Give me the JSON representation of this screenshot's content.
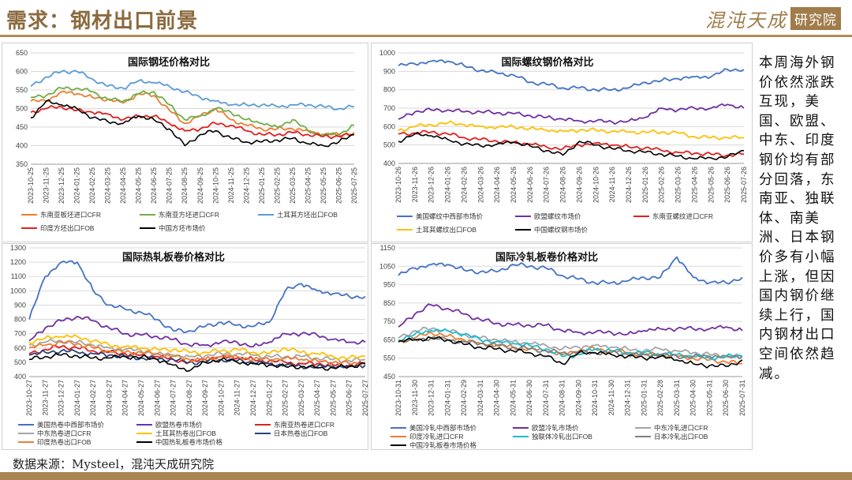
{
  "header": {
    "title": "需求：钢材出口前景",
    "logo_text": "混沌天成",
    "logo_box": "研究院"
  },
  "side_text": "本周海外钢价依然涨跌互现，美国、欧盟、中东、印度钢价均有部分回落，东南亚、独联体、南美洲、日本钢价多有小幅上涨，但因国内钢价继续上行，国内钢材出口空间依然趋减。",
  "source_text": "数据来源：Mysteel，混沌天成研究院",
  "colors": {
    "brand": "#a07c4a",
    "rule": "#b08d57"
  },
  "chart_data": [
    {
      "type": "line",
      "title": "国际钢坯价格对比",
      "ylim": [
        350,
        650
      ],
      "yticks": [
        350,
        400,
        450,
        500,
        550,
        600,
        650
      ],
      "x": [
        "2023-10-25",
        "2023-11-25",
        "2023-12-25",
        "2024-01-25",
        "2024-02-25",
        "2024-03-25",
        "2024-04-25",
        "2024-05-25",
        "2024-06-25",
        "2024-07-25",
        "2024-08-25",
        "2024-09-25",
        "2024-10-25",
        "2024-11-25",
        "2024-12-25",
        "2025-01-25",
        "2025-02-25",
        "2025-03-25",
        "2025-04-25",
        "2025-05-25",
        "2025-06-25",
        "2025-07-25"
      ],
      "legend_cols": 3,
      "series": [
        {
          "name": "东南亚板坯进口CFR",
          "color": "#ed7d31",
          "values": [
            520,
            520,
            545,
            540,
            530,
            525,
            515,
            540,
            535,
            495,
            460,
            480,
            500,
            470,
            455,
            445,
            445,
            445,
            440,
            430,
            430,
            435
          ]
        },
        {
          "name": "东南亚方坯进口CFR",
          "color": "#70ad47",
          "values": [
            530,
            535,
            555,
            555,
            545,
            525,
            520,
            540,
            545,
            510,
            470,
            480,
            500,
            490,
            470,
            460,
            450,
            470,
            440,
            430,
            430,
            455
          ]
        },
        {
          "name": "土耳其方坯出口FOB",
          "color": "#5b9bd5",
          "values": [
            560,
            585,
            600,
            600,
            580,
            560,
            555,
            575,
            570,
            560,
            545,
            530,
            520,
            510,
            510,
            510,
            505,
            510,
            510,
            505,
            500,
            505
          ]
        },
        {
          "name": "印度方坯出口FOB",
          "color": "#e02020",
          "values": [
            490,
            500,
            505,
            495,
            490,
            485,
            470,
            480,
            480,
            460,
            440,
            445,
            460,
            455,
            440,
            430,
            430,
            435,
            430,
            425,
            425,
            430
          ]
        },
        {
          "name": "中国方坯市场价",
          "color": "#000000",
          "values": [
            475,
            520,
            510,
            500,
            475,
            465,
            460,
            480,
            470,
            445,
            400,
            430,
            440,
            420,
            410,
            410,
            415,
            420,
            405,
            400,
            410,
            430
          ]
        }
      ]
    },
    {
      "type": "line",
      "title": "国际螺纹钢价格对比",
      "ylim": [
        400,
        1000
      ],
      "yticks": [
        400,
        500,
        600,
        700,
        800,
        900,
        1000
      ],
      "x": [
        "2023-10-26",
        "2023-11-26",
        "2023-12-26",
        "2024-01-26",
        "2024-02-26",
        "2024-03-26",
        "2024-04-26",
        "2024-05-26",
        "2024-06-26",
        "2024-07-26",
        "2024-08-26",
        "2024-09-26",
        "2024-10-26",
        "2024-11-26",
        "2024-12-26",
        "2025-01-26",
        "2025-02-26",
        "2025-03-26",
        "2025-04-26",
        "2025-05-26",
        "2025-06-26",
        "2025-07-26"
      ],
      "legend_cols": 3,
      "series": [
        {
          "name": "美国螺纹中西部市场价",
          "color": "#4472c4",
          "values": [
            930,
            940,
            955,
            955,
            930,
            905,
            890,
            880,
            840,
            830,
            810,
            810,
            800,
            800,
            810,
            840,
            850,
            860,
            870,
            870,
            910,
            910
          ]
        },
        {
          "name": "欧盟螺纹市场价",
          "color": "#7030a0",
          "values": [
            640,
            680,
            690,
            690,
            680,
            680,
            675,
            670,
            660,
            650,
            640,
            630,
            630,
            625,
            630,
            650,
            700,
            690,
            700,
            700,
            720,
            700
          ]
        },
        {
          "name": "东南亚螺纹进口CFR",
          "color": "#e02020",
          "values": [
            560,
            565,
            570,
            560,
            540,
            530,
            520,
            515,
            505,
            490,
            480,
            500,
            510,
            500,
            490,
            485,
            470,
            460,
            455,
            450,
            445,
            450
          ]
        },
        {
          "name": "土耳其螺纹出口FOB",
          "color": "#ffc000",
          "values": [
            580,
            600,
            610,
            620,
            610,
            600,
            595,
            600,
            590,
            580,
            575,
            580,
            580,
            575,
            570,
            570,
            570,
            565,
            545,
            540,
            540,
            540
          ]
        },
        {
          "name": "中国螺纹钢市场价",
          "color": "#000000",
          "values": [
            520,
            560,
            550,
            530,
            505,
            495,
            505,
            515,
            495,
            470,
            445,
            520,
            500,
            480,
            470,
            460,
            450,
            440,
            425,
            430,
            435,
            470
          ]
        }
      ]
    },
    {
      "type": "line",
      "title": "国际热轧板卷价格对比",
      "ylim": [
        400,
        1300
      ],
      "yticks": [
        400,
        500,
        600,
        700,
        800,
        900,
        1000,
        1100,
        1200,
        1300
      ],
      "x": [
        "2023-10-27",
        "2023-11-27",
        "2023-12-27",
        "2024-01-27",
        "2024-02-27",
        "2024-03-27",
        "2024-04-27",
        "2024-05-27",
        "2024-06-27",
        "2024-07-27",
        "2024-08-27",
        "2024-09-27",
        "2024-10-27",
        "2024-11-27",
        "2024-12-27",
        "2025-01-27",
        "2025-02-27",
        "2025-03-27",
        "2025-04-27",
        "2025-05-27",
        "2025-06-27",
        "2025-07-27"
      ],
      "legend_cols": 3,
      "series": [
        {
          "name": "美国热卷中西部市场价",
          "color": "#4472c4",
          "values": [
            800,
            1100,
            1200,
            1200,
            1000,
            900,
            870,
            850,
            800,
            720,
            720,
            750,
            780,
            760,
            750,
            780,
            1000,
            1050,
            1000,
            980,
            960,
            960
          ]
        },
        {
          "name": "欧盟热卷市场价",
          "color": "#7030a0",
          "values": [
            650,
            740,
            790,
            820,
            790,
            740,
            700,
            690,
            680,
            660,
            620,
            620,
            640,
            640,
            610,
            640,
            700,
            700,
            690,
            660,
            640,
            640
          ]
        },
        {
          "name": "东南亚热卷进口CFR",
          "color": "#e02020",
          "values": [
            560,
            590,
            610,
            600,
            580,
            570,
            560,
            550,
            540,
            520,
            500,
            520,
            540,
            530,
            520,
            510,
            500,
            490,
            490,
            480,
            480,
            490
          ]
        },
        {
          "name": "中东热卷进口CFR",
          "color": "#a5a5a5",
          "values": [
            620,
            640,
            650,
            640,
            620,
            600,
            590,
            580,
            560,
            550,
            540,
            545,
            560,
            560,
            550,
            540,
            540,
            540,
            530,
            520,
            510,
            520
          ]
        },
        {
          "name": "土耳其热卷出口FOB",
          "color": "#ffc000",
          "values": [
            640,
            670,
            680,
            680,
            650,
            620,
            610,
            600,
            590,
            590,
            570,
            570,
            580,
            590,
            570,
            560,
            600,
            570,
            560,
            540,
            530,
            540
          ]
        },
        {
          "name": "日本热卷出口FOB",
          "color": "#264478",
          "values": [
            550,
            570,
            580,
            570,
            560,
            550,
            540,
            530,
            520,
            520,
            500,
            500,
            520,
            510,
            500,
            490,
            480,
            470,
            470,
            470,
            470,
            480
          ]
        },
        {
          "name": "印度热卷出口FOB",
          "color": "#ed7d31",
          "values": [
            600,
            620,
            640,
            630,
            600,
            580,
            570,
            570,
            560,
            540,
            520,
            520,
            540,
            540,
            520,
            520,
            530,
            520,
            510,
            500,
            490,
            500
          ]
        },
        {
          "name": "中国热轧板卷市场价格",
          "color": "#000000",
          "values": [
            520,
            540,
            550,
            545,
            530,
            530,
            540,
            535,
            520,
            480,
            440,
            500,
            520,
            500,
            490,
            480,
            470,
            470,
            460,
            460,
            470,
            490
          ]
        }
      ]
    },
    {
      "type": "line",
      "title": "国际冷轧板卷价格对比",
      "ylim": [
        450,
        1150
      ],
      "yticks": [
        450,
        550,
        650,
        750,
        850,
        950,
        1050,
        1150
      ],
      "x": [
        "2023-10-31",
        "2023-11-30",
        "2023-12-31",
        "2024-01-31",
        "2024-02-29",
        "2024-03-31",
        "2024-04-30",
        "2024-05-31",
        "2024-06-30",
        "2024-07-31",
        "2024-08-31",
        "2024-09-30",
        "2024-10-31",
        "2024-11-30",
        "2024-12-31",
        "2025-01-31",
        "2025-02-28",
        "2025-03-31",
        "2025-04-30",
        "2025-05-31",
        "2025-06-30",
        "2025-07-31"
      ],
      "legend_cols": 3,
      "series": [
        {
          "name": "美国冷轧中西部市场价",
          "color": "#4472c4",
          "values": [
            1000,
            1040,
            1060,
            1060,
            1030,
            1020,
            1020,
            1060,
            1050,
            1040,
            1000,
            980,
            960,
            960,
            970,
            990,
            990,
            1100,
            990,
            960,
            960,
            990
          ]
        },
        {
          "name": "欧盟冷轧市场价",
          "color": "#7030a0",
          "values": [
            720,
            790,
            840,
            820,
            790,
            760,
            740,
            730,
            730,
            730,
            700,
            690,
            690,
            690,
            680,
            700,
            710,
            710,
            710,
            710,
            720,
            700
          ]
        },
        {
          "name": "中东冷轧进口CFR",
          "color": "#a5a5a5",
          "values": [
            660,
            700,
            710,
            700,
            680,
            660,
            650,
            640,
            630,
            620,
            600,
            610,
            620,
            610,
            600,
            590,
            600,
            590,
            580,
            570,
            560,
            560
          ]
        },
        {
          "name": "印度冷轧进口CFR",
          "color": "#ed7d31",
          "values": [
            640,
            660,
            690,
            670,
            650,
            630,
            620,
            610,
            600,
            590,
            570,
            590,
            600,
            590,
            580,
            570,
            570,
            560,
            550,
            540,
            530,
            520
          ]
        },
        {
          "name": "独联体冷轧出口FOB",
          "color": "#17becf",
          "values": [
            650,
            680,
            700,
            700,
            680,
            650,
            640,
            630,
            620,
            600,
            560,
            570,
            600,
            590,
            580,
            580,
            570,
            570,
            560,
            550,
            560,
            560
          ]
        },
        {
          "name": "日本冷轧出口FOB",
          "color": "#7f7f7f",
          "values": [
            640,
            650,
            660,
            650,
            640,
            630,
            620,
            610,
            600,
            590,
            580,
            580,
            580,
            580,
            570,
            570,
            570,
            560,
            560,
            560,
            560,
            560
          ]
        },
        {
          "name": "中国冷轧板卷市场价格",
          "color": "#000000",
          "values": [
            640,
            650,
            660,
            650,
            625,
            610,
            600,
            590,
            580,
            560,
            520,
            580,
            580,
            570,
            560,
            550,
            560,
            540,
            520,
            510,
            505,
            540
          ]
        }
      ]
    }
  ]
}
